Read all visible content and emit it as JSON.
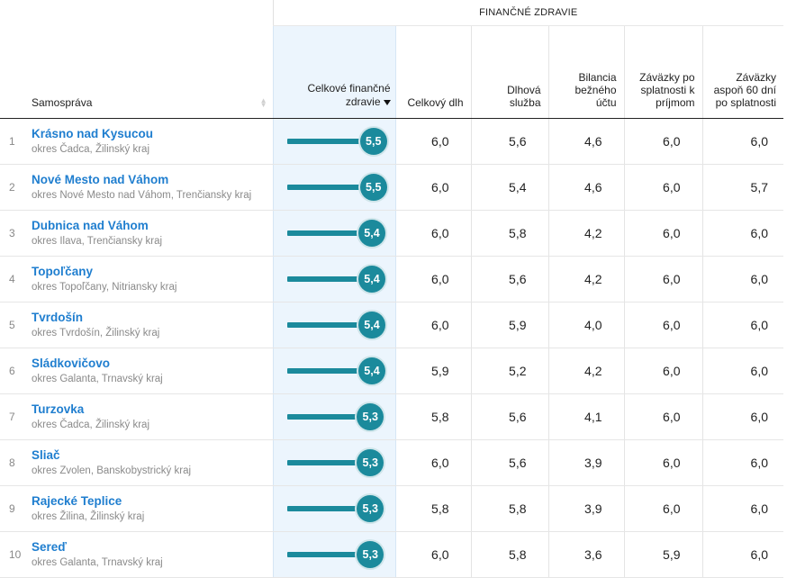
{
  "header": {
    "group_label": "FINANČNÉ ZDRAVIE",
    "columns": {
      "name": "Samospráva",
      "score": "Celkové finančné zdravie",
      "debt": "Celkový dlh",
      "debt_service": "Dlhová služba",
      "balance": "Bilancia bežného účtu",
      "overdue_income": "Záväzky po splatnosti k príjmom",
      "overdue_60": "Záväzky aspoň 60 dní po splatnosti"
    }
  },
  "score_max": 6,
  "rows": [
    {
      "rank": "1",
      "name": "Krásno nad Kysucou",
      "region": "okres Čadca, Žilinský kraj",
      "score": "5,5",
      "score_value": 5.5,
      "debt": "6,0",
      "debt_service": "5,6",
      "balance": "4,6",
      "overdue_income": "6,0",
      "overdue_60": "6,0"
    },
    {
      "rank": "2",
      "name": "Nové Mesto nad Váhom",
      "region": "okres Nové Mesto nad Váhom, Trenčiansky kraj",
      "score": "5,5",
      "score_value": 5.5,
      "debt": "6,0",
      "debt_service": "5,4",
      "balance": "4,6",
      "overdue_income": "6,0",
      "overdue_60": "5,7"
    },
    {
      "rank": "3",
      "name": "Dubnica nad Váhom",
      "region": "okres Ilava, Trenčiansky kraj",
      "score": "5,4",
      "score_value": 5.4,
      "debt": "6,0",
      "debt_service": "5,8",
      "balance": "4,2",
      "overdue_income": "6,0",
      "overdue_60": "6,0"
    },
    {
      "rank": "4",
      "name": "Topoľčany",
      "region": "okres Topoľčany, Nitriansky kraj",
      "score": "5,4",
      "score_value": 5.4,
      "debt": "6,0",
      "debt_service": "5,6",
      "balance": "4,2",
      "overdue_income": "6,0",
      "overdue_60": "6,0"
    },
    {
      "rank": "5",
      "name": "Tvrdošín",
      "region": "okres Tvrdošín, Žilinský kraj",
      "score": "5,4",
      "score_value": 5.4,
      "debt": "6,0",
      "debt_service": "5,9",
      "balance": "4,0",
      "overdue_income": "6,0",
      "overdue_60": "6,0"
    },
    {
      "rank": "6",
      "name": "Sládkovičovo",
      "region": "okres Galanta, Trnavský kraj",
      "score": "5,4",
      "score_value": 5.4,
      "debt": "5,9",
      "debt_service": "5,2",
      "balance": "4,2",
      "overdue_income": "6,0",
      "overdue_60": "6,0"
    },
    {
      "rank": "7",
      "name": "Turzovka",
      "region": "okres Čadca, Žilinský kraj",
      "score": "5,3",
      "score_value": 5.3,
      "debt": "5,8",
      "debt_service": "5,6",
      "balance": "4,1",
      "overdue_income": "6,0",
      "overdue_60": "6,0"
    },
    {
      "rank": "8",
      "name": "Sliač",
      "region": "okres Zvolen, Banskobystrický kraj",
      "score": "5,3",
      "score_value": 5.3,
      "debt": "6,0",
      "debt_service": "5,6",
      "balance": "3,9",
      "overdue_income": "6,0",
      "overdue_60": "6,0"
    },
    {
      "rank": "9",
      "name": "Rajecké Teplice",
      "region": "okres Žilina, Žilinský kraj",
      "score": "5,3",
      "score_value": 5.3,
      "debt": "5,8",
      "debt_service": "5,8",
      "balance": "3,9",
      "overdue_income": "6,0",
      "overdue_60": "6,0"
    },
    {
      "rank": "10",
      "name": "Sereď",
      "region": "okres Galanta, Trnavský kraj",
      "score": "5,3",
      "score_value": 5.3,
      "debt": "6,0",
      "debt_service": "5,8",
      "balance": "3,6",
      "overdue_income": "5,9",
      "overdue_60": "6,0"
    }
  ],
  "colors": {
    "accent": "#1b8a9c",
    "link": "#1f7ecf",
    "highlight_column": "#ecf5fd"
  },
  "icons": {
    "sort_inactive": "sort-arrows-icon",
    "sort_active": "sort-desc-icon"
  }
}
